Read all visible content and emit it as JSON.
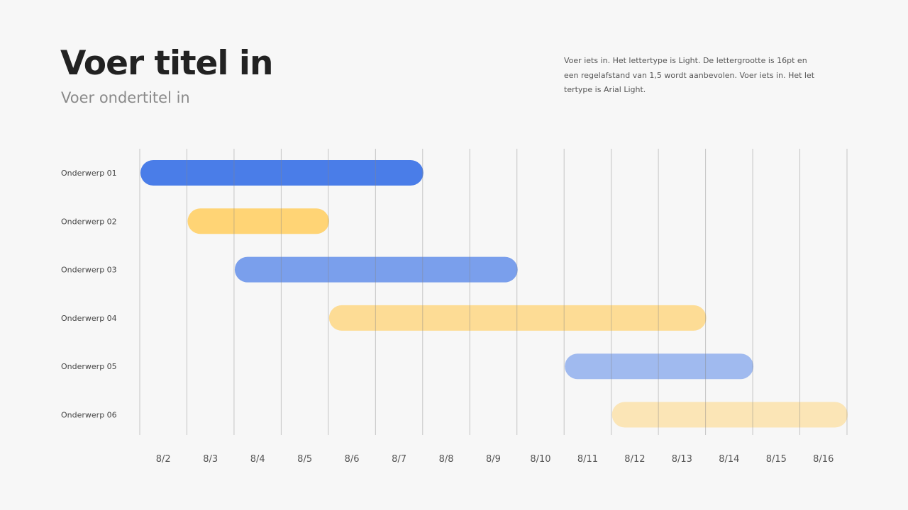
{
  "header": {
    "title": "Voer titel in",
    "subtitle": "Voer ondertitel in",
    "description": "Voer iets in. Het lettertype is Light. De lettergrootte is 16pt en een regelafstand van 1,5 wordt aanbevolen. Voer iets in. Het let tertype is Arial Light."
  },
  "chart_data": {
    "type": "gantt",
    "categories": [
      "8/2",
      "8/3",
      "8/4",
      "8/5",
      "8/6",
      "8/7",
      "8/8",
      "8/9",
      "8/10",
      "8/11",
      "8/12",
      "8/13",
      "8/14",
      "8/15",
      "8/16"
    ],
    "grid": "vertical",
    "tasks": [
      {
        "label": "Onderwerp 01",
        "start": "8/2",
        "end": "8/7",
        "color": "#4a7de8",
        "opacity": 1.0
      },
      {
        "label": "Onderwerp 02",
        "start": "8/3",
        "end": "8/5",
        "color": "#ffcf66",
        "opacity": 0.9
      },
      {
        "label": "Onderwerp 03",
        "start": "8/4",
        "end": "8/9",
        "color": "#4a7de8",
        "opacity": 0.72
      },
      {
        "label": "Onderwerp 04",
        "start": "8/6",
        "end": "8/13",
        "color": "#ffcf66",
        "opacity": 0.68
      },
      {
        "label": "Onderwerp 05",
        "start": "8/11",
        "end": "8/14",
        "color": "#4a7de8",
        "opacity": 0.5
      },
      {
        "label": "Onderwerp 06",
        "start": "8/12",
        "end": "8/16",
        "color": "#ffcf66",
        "opacity": 0.45
      }
    ]
  }
}
